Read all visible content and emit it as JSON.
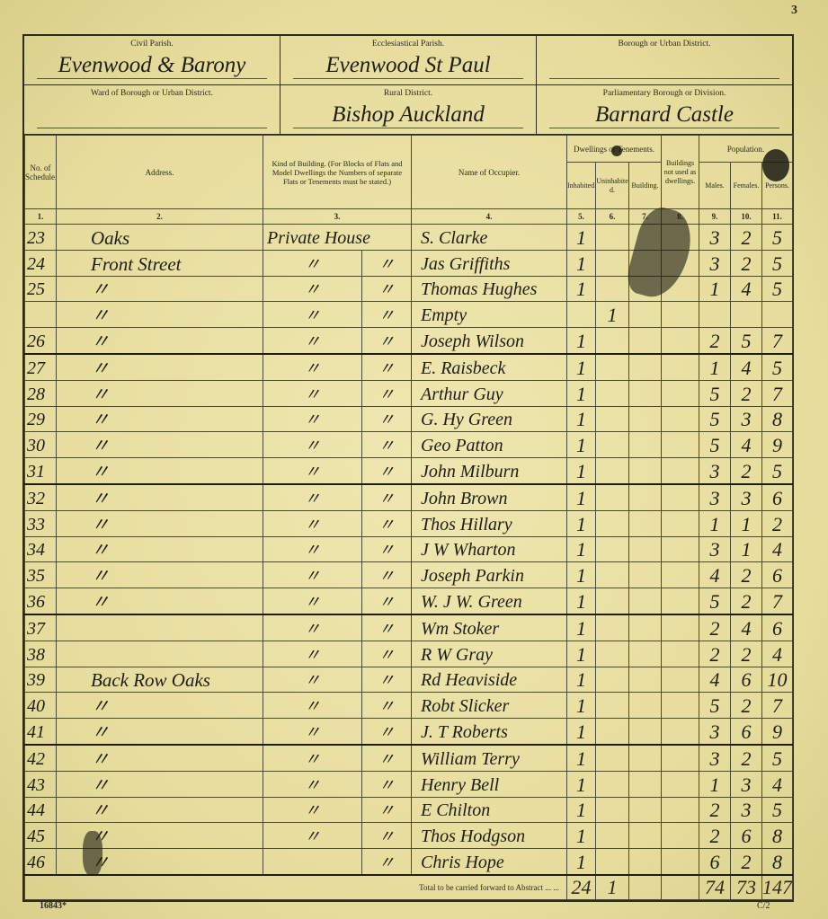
{
  "page_number": "3",
  "form_number": "16843*",
  "sheet_code": "C/2",
  "header": {
    "civil_parish": {
      "label": "Civil Parish.",
      "value": "Evenwood & Barony"
    },
    "ecclesiastical_parish": {
      "label": "Ecclesiastical Parish.",
      "value": "Evenwood St Paul"
    },
    "borough": {
      "label": "Borough or Urban District.",
      "value": ""
    },
    "ward": {
      "label": "Ward of Borough or Urban District.",
      "value": ""
    },
    "rural_district": {
      "label": "Rural District.",
      "value": "Bishop Auckland"
    },
    "parliamentary": {
      "label": "Parliamentary Borough or Division.",
      "value": "Barnard Castle"
    }
  },
  "columns": {
    "no": "No. of Schedule.",
    "address": "Address.",
    "kind": "Kind of Building. (For Blocks of Flats and Model Dwellings the Numbers of separate Flats or Tenements must be stated.)",
    "name": "Name of Occupier.",
    "dwellings": "Dwellings or Tenements.",
    "inhabited": "Inhabited.",
    "uninhabited": "Uninhabited.",
    "building": "Building.",
    "not_dwellings": "Buildings not used as dwellings.",
    "population": "Population.",
    "males": "Males.",
    "females": "Females.",
    "persons": "Persons.",
    "numbers": [
      "1.",
      "2.",
      "3.",
      "4.",
      "5.",
      "6.",
      "7.",
      "8.",
      "9.",
      "10.",
      "11."
    ]
  },
  "rows": [
    {
      "no": "23",
      "address": "Oaks",
      "kind": "Private House",
      "kind2": "",
      "name": "S. Clarke",
      "inh": "1",
      "uninh": "",
      "males": "3",
      "females": "2",
      "persons": "5"
    },
    {
      "no": "24",
      "address": "Front Street",
      "kind": "〃",
      "kind2": "〃",
      "name": "Jas Griffiths",
      "inh": "1",
      "uninh": "",
      "males": "3",
      "females": "2",
      "persons": "5"
    },
    {
      "no": "25",
      "address": "〃",
      "kind": "〃",
      "kind2": "〃",
      "name": "Thomas Hughes",
      "inh": "1",
      "uninh": "",
      "males": "1",
      "females": "4",
      "persons": "5"
    },
    {
      "no": "",
      "address": "〃",
      "kind": "〃",
      "kind2": "〃",
      "name": "Empty",
      "inh": "",
      "uninh": "1",
      "males": "",
      "females": "",
      "persons": ""
    },
    {
      "no": "26",
      "address": "〃",
      "kind": "〃",
      "kind2": "〃",
      "name": "Joseph Wilson",
      "inh": "1",
      "uninh": "",
      "males": "2",
      "females": "5",
      "persons": "7"
    },
    {
      "no": "27",
      "address": "〃",
      "kind": "〃",
      "kind2": "〃",
      "name": "E. Raisbeck",
      "inh": "1",
      "uninh": "",
      "males": "1",
      "females": "4",
      "persons": "5"
    },
    {
      "no": "28",
      "address": "〃",
      "kind": "〃",
      "kind2": "〃",
      "name": "Arthur Guy",
      "inh": "1",
      "uninh": "",
      "males": "5",
      "females": "2",
      "persons": "7"
    },
    {
      "no": "29",
      "address": "〃",
      "kind": "〃",
      "kind2": "〃",
      "name": "G. Hy Green",
      "inh": "1",
      "uninh": "",
      "males": "5",
      "females": "3",
      "persons": "8"
    },
    {
      "no": "30",
      "address": "〃",
      "kind": "〃",
      "kind2": "〃",
      "name": "Geo Patton",
      "inh": "1",
      "uninh": "",
      "males": "5",
      "females": "4",
      "persons": "9"
    },
    {
      "no": "31",
      "address": "〃",
      "kind": "〃",
      "kind2": "〃",
      "name": "John Milburn",
      "inh": "1",
      "uninh": "",
      "males": "3",
      "females": "2",
      "persons": "5"
    },
    {
      "no": "32",
      "address": "〃",
      "kind": "〃",
      "kind2": "〃",
      "name": "John Brown",
      "inh": "1",
      "uninh": "",
      "males": "3",
      "females": "3",
      "persons": "6"
    },
    {
      "no": "33",
      "address": "〃",
      "kind": "〃",
      "kind2": "〃",
      "name": "Thos Hillary",
      "inh": "1",
      "uninh": "",
      "males": "1",
      "females": "1",
      "persons": "2"
    },
    {
      "no": "34",
      "address": "〃",
      "kind": "〃",
      "kind2": "〃",
      "name": "J W Wharton",
      "inh": "1",
      "uninh": "",
      "males": "3",
      "females": "1",
      "persons": "4"
    },
    {
      "no": "35",
      "address": "〃",
      "kind": "〃",
      "kind2": "〃",
      "name": "Joseph Parkin",
      "inh": "1",
      "uninh": "",
      "males": "4",
      "females": "2",
      "persons": "6"
    },
    {
      "no": "36",
      "address": "〃",
      "kind": "〃",
      "kind2": "〃",
      "name": "W. J W. Green",
      "inh": "1",
      "uninh": "",
      "males": "5",
      "females": "2",
      "persons": "7"
    },
    {
      "no": "37",
      "address": "",
      "kind": "〃",
      "kind2": "〃",
      "name": "Wm Stoker",
      "inh": "1",
      "uninh": "",
      "males": "2",
      "females": "4",
      "persons": "6"
    },
    {
      "no": "38",
      "address": "",
      "kind": "〃",
      "kind2": "〃",
      "name": "R W Gray",
      "inh": "1",
      "uninh": "",
      "males": "2",
      "females": "2",
      "persons": "4"
    },
    {
      "no": "39",
      "address": "Back Row Oaks",
      "kind": "〃",
      "kind2": "〃",
      "name": "Rd Heaviside",
      "inh": "1",
      "uninh": "",
      "males": "4",
      "females": "6",
      "persons": "10"
    },
    {
      "no": "40",
      "address": "〃",
      "kind": "〃",
      "kind2": "〃",
      "name": "Robt Slicker",
      "inh": "1",
      "uninh": "",
      "males": "5",
      "females": "2",
      "persons": "7"
    },
    {
      "no": "41",
      "address": "〃",
      "kind": "〃",
      "kind2": "〃",
      "name": "J. T Roberts",
      "inh": "1",
      "uninh": "",
      "males": "3",
      "females": "6",
      "persons": "9"
    },
    {
      "no": "42",
      "address": "〃",
      "kind": "〃",
      "kind2": "〃",
      "name": "William Terry",
      "inh": "1",
      "uninh": "",
      "males": "3",
      "females": "2",
      "persons": "5"
    },
    {
      "no": "43",
      "address": "〃",
      "kind": "〃",
      "kind2": "〃",
      "name": "Henry Bell",
      "inh": "1",
      "uninh": "",
      "males": "1",
      "females": "3",
      "persons": "4"
    },
    {
      "no": "44",
      "address": "〃",
      "kind": "〃",
      "kind2": "〃",
      "name": "E Chilton",
      "inh": "1",
      "uninh": "",
      "males": "2",
      "females": "3",
      "persons": "5"
    },
    {
      "no": "45",
      "address": "〃",
      "kind": "〃",
      "kind2": "〃",
      "name": "Thos Hodgson",
      "inh": "1",
      "uninh": "",
      "males": "2",
      "females": "6",
      "persons": "8"
    },
    {
      "no": "46",
      "address": "〃",
      "kind": "",
      "kind2": "〃",
      "name": "Chris Hope",
      "inh": "1",
      "uninh": "",
      "males": "6",
      "females": "2",
      "persons": "8"
    }
  ],
  "total": {
    "label": "Total to be carried forward to Abstract ... ...",
    "inh": "24",
    "uninh": "1",
    "males": "74",
    "females": "73",
    "persons": "147"
  }
}
